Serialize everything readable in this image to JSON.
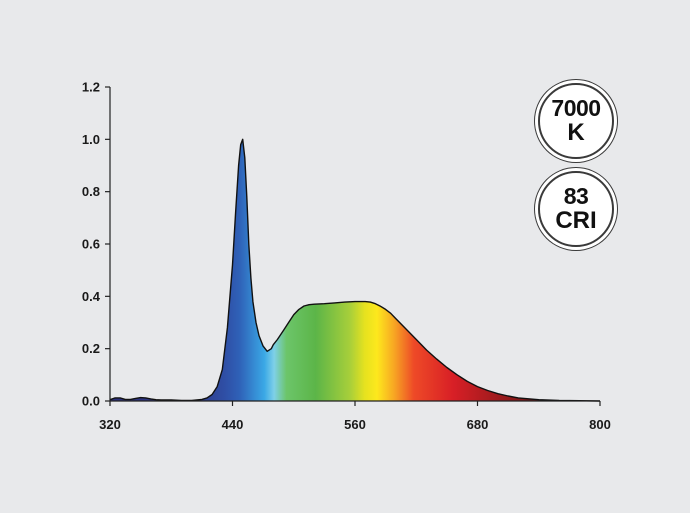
{
  "chart_data": {
    "type": "area",
    "title": "",
    "xlabel": "",
    "ylabel": "",
    "xlim": [
      320,
      800
    ],
    "ylim": [
      0,
      1.2
    ],
    "x_ticks": [
      "320",
      "440",
      "560",
      "680",
      "800"
    ],
    "y_ticks": [
      "0.0",
      "0.2",
      "0.4",
      "0.6",
      "0.8",
      "1.0",
      "1.2"
    ],
    "grid": false,
    "fill": "visible-spectrum gradient",
    "series": [
      {
        "x": [
          320,
          325,
          330,
          335,
          340,
          345,
          350,
          355,
          360,
          365,
          370,
          380,
          390,
          400,
          410,
          415,
          420,
          425,
          430,
          435,
          440,
          443,
          446,
          448,
          450,
          452,
          454,
          456,
          458,
          460,
          463,
          466,
          470,
          474,
          478,
          480,
          484,
          490,
          495,
          500,
          505,
          510,
          515,
          520,
          525,
          530,
          540,
          550,
          560,
          565,
          570,
          575,
          580,
          585,
          590,
          595,
          600,
          610,
          620,
          630,
          640,
          650,
          660,
          670,
          680,
          690,
          700,
          710,
          720,
          740,
          760,
          780,
          800
        ],
        "y": [
          0.005,
          0.012,
          0.012,
          0.006,
          0.006,
          0.01,
          0.013,
          0.012,
          0.008,
          0.005,
          0.004,
          0.004,
          0.002,
          0.002,
          0.006,
          0.012,
          0.025,
          0.055,
          0.12,
          0.28,
          0.52,
          0.72,
          0.9,
          0.98,
          1.0,
          0.93,
          0.78,
          0.6,
          0.47,
          0.38,
          0.3,
          0.25,
          0.21,
          0.19,
          0.2,
          0.215,
          0.235,
          0.27,
          0.3,
          0.33,
          0.35,
          0.363,
          0.368,
          0.37,
          0.371,
          0.372,
          0.375,
          0.378,
          0.38,
          0.38,
          0.38,
          0.378,
          0.372,
          0.362,
          0.35,
          0.335,
          0.315,
          0.275,
          0.235,
          0.195,
          0.16,
          0.128,
          0.1,
          0.075,
          0.055,
          0.04,
          0.028,
          0.019,
          0.012,
          0.005,
          0.002,
          0.001,
          0.0
        ]
      }
    ]
  },
  "badges": {
    "cct": {
      "value": "7000",
      "unit": "K"
    },
    "cri": {
      "value": "83",
      "unit": "CRI"
    }
  }
}
